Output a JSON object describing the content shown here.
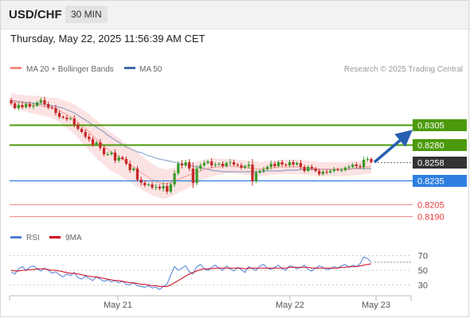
{
  "header": {
    "symbol": "USD/CHF",
    "timeframe": "30 MIN",
    "timestamp": "Thursday, May 22, 2025 11:56:39 AM CET"
  },
  "legend": {
    "ma20_label": "MA 20 + Bollinger Bands",
    "ma50_label": "MA 50",
    "ma20_color": "#f28b82",
    "ma50_color": "#3f6aa8",
    "credit": "Research © 2025 Trading Central"
  },
  "rsi_legend": {
    "rsi_label": "RSI",
    "ma_label": "9MA",
    "rsi_color": "#4f7fd6",
    "ma_color": "#d0021b"
  },
  "chart_data": {
    "type": "candlestick",
    "x_ticks": [
      "May 21",
      "May 22",
      "May 23"
    ],
    "levels": [
      {
        "value": 0.8305,
        "label": "0.8305",
        "kind": "resistance",
        "color": "#4c9a0a"
      },
      {
        "value": 0.828,
        "label": "0.8280",
        "kind": "resistance",
        "color": "#4c9a0a"
      },
      {
        "value": 0.8258,
        "label": "0.8258",
        "kind": "last",
        "color": "#333333"
      },
      {
        "value": 0.8235,
        "label": "0.8235",
        "kind": "pivot",
        "color": "#2f7fe0"
      },
      {
        "value": 0.8205,
        "label": "0.8205",
        "kind": "support",
        "color": "#e53935"
      },
      {
        "value": 0.819,
        "label": "0.8190",
        "kind": "support",
        "color": "#e53935"
      }
    ],
    "close": [
      0.8332,
      0.8326,
      0.833,
      0.8327,
      0.8331,
      0.8328,
      0.8329,
      0.8333,
      0.8336,
      0.8331,
      0.8327,
      0.8326,
      0.832,
      0.8315,
      0.8314,
      0.8312,
      0.8313,
      0.8305,
      0.83,
      0.8296,
      0.829,
      0.8287,
      0.828,
      0.8283,
      0.8276,
      0.8268,
      0.8268,
      0.827,
      0.826,
      0.8264,
      0.8262,
      0.8256,
      0.8248,
      0.825,
      0.8236,
      0.8232,
      0.8229,
      0.823,
      0.8226,
      0.8227,
      0.8225,
      0.8228,
      0.8221,
      0.823,
      0.8244,
      0.8256,
      0.8254,
      0.8258,
      0.825,
      0.8232,
      0.825,
      0.8254,
      0.8257,
      0.8259,
      0.8254,
      0.8255,
      0.8256,
      0.8253,
      0.8257,
      0.8258,
      0.8255,
      0.8254,
      0.8251,
      0.8253,
      0.8255,
      0.8234,
      0.8245,
      0.8247,
      0.8249,
      0.8252,
      0.8256,
      0.8253,
      0.8258,
      0.8255,
      0.8254,
      0.8258,
      0.8255,
      0.8257,
      0.8252,
      0.8247,
      0.8252,
      0.825,
      0.8247,
      0.8243,
      0.8246,
      0.8245,
      0.8247,
      0.8249,
      0.8248,
      0.8248,
      0.8251,
      0.8252,
      0.8255,
      0.8253,
      0.8252,
      0.8261,
      0.8262,
      0.8258
    ],
    "ma20": [
      0.8336,
      0.8335,
      0.8334,
      0.8333,
      0.8332,
      0.8331,
      0.833,
      0.833,
      0.8329,
      0.8328,
      0.8327,
      0.8326,
      0.8325,
      0.8323,
      0.832,
      0.8318,
      0.8315,
      0.8312,
      0.8308,
      0.8304,
      0.83,
      0.8296,
      0.8291,
      0.8287,
      0.8283,
      0.8279,
      0.8274,
      0.8271,
      0.8268,
      0.8265,
      0.8262,
      0.8258,
      0.8255,
      0.8252,
      0.8249,
      0.8245,
      0.8242,
      0.8239,
      0.8236,
      0.8234,
      0.8232,
      0.8231,
      0.8231,
      0.8232,
      0.8234,
      0.8236,
      0.8238,
      0.824,
      0.8242,
      0.8243,
      0.8245,
      0.8247,
      0.8249,
      0.825,
      0.8251,
      0.8252,
      0.8252,
      0.8253,
      0.8253,
      0.8253,
      0.8253,
      0.8252,
      0.8252,
      0.8251,
      0.8251,
      0.825,
      0.825,
      0.8249,
      0.825,
      0.825,
      0.8251,
      0.8251,
      0.8252,
      0.8252,
      0.8252,
      0.8252,
      0.8252,
      0.8252,
      0.8252,
      0.8251,
      0.8251,
      0.825,
      0.825,
      0.8249,
      0.8249,
      0.8249,
      0.8249,
      0.8249,
      0.8249,
      0.8249,
      0.8249,
      0.825,
      0.825,
      0.8251,
      0.8251,
      0.8252,
      0.8252,
      0.8253
    ],
    "ma50": [
      0.8335,
      0.8335,
      0.8334,
      0.8334,
      0.8333,
      0.8333,
      0.8332,
      0.8332,
      0.8331,
      0.8331,
      0.833,
      0.8329,
      0.8328,
      0.8327,
      0.8326,
      0.8324,
      0.8322,
      0.832,
      0.8317,
      0.8314,
      0.8311,
      0.8308,
      0.8305,
      0.8302,
      0.8299,
      0.8296,
      0.8292,
      0.8289,
      0.8286,
      0.8283,
      0.828,
      0.8277,
      0.8275,
      0.8273,
      0.8271,
      0.827,
      0.8268,
      0.8266,
      0.8265,
      0.8263,
      0.8262,
      0.8261,
      0.826,
      0.8259,
      0.8258,
      0.8257,
      0.8256,
      0.8255,
      0.8254,
      0.8253,
      0.8252,
      0.8251,
      0.825,
      0.8249,
      0.8248,
      0.8247,
      0.8247,
      0.8246,
      0.8246,
      0.8246,
      0.8246,
      0.8246,
      0.8246,
      0.8246,
      0.8246,
      0.8246,
      0.8246,
      0.8246,
      0.8246,
      0.8247,
      0.8247,
      0.8247,
      0.8247,
      0.8247,
      0.8248,
      0.8248,
      0.8248,
      0.8248,
      0.8249,
      0.8249,
      0.8249,
      0.8249,
      0.8249,
      0.8249,
      0.8249,
      0.8249,
      0.8249,
      0.8249,
      0.8249,
      0.8249,
      0.8249,
      0.8249,
      0.825,
      0.825,
      0.825,
      0.825,
      0.825,
      0.825
    ],
    "band_width": [
      0.0009,
      0.0009,
      0.0009,
      0.001,
      0.001,
      0.0011,
      0.0011,
      0.0012,
      0.0012,
      0.0012,
      0.0012,
      0.0013,
      0.0014,
      0.0015,
      0.0016,
      0.0017,
      0.0018,
      0.0019,
      0.002,
      0.0021,
      0.0022,
      0.0023,
      0.0023,
      0.0024,
      0.0024,
      0.0024,
      0.0024,
      0.0024,
      0.0024,
      0.0023,
      0.0023,
      0.0023,
      0.0022,
      0.0022,
      0.0022,
      0.0021,
      0.0021,
      0.002,
      0.002,
      0.0019,
      0.0019,
      0.0019,
      0.0018,
      0.0018,
      0.0017,
      0.0017,
      0.0016,
      0.0016,
      0.0015,
      0.0014,
      0.0014,
      0.0013,
      0.0012,
      0.0012,
      0.0011,
      0.0011,
      0.001,
      0.001,
      0.0009,
      0.0009,
      0.0009,
      0.0009,
      0.0009,
      0.0009,
      0.0009,
      0.0009,
      0.0009,
      0.0009,
      0.0009,
      0.0009,
      0.0009,
      0.0009,
      0.0009,
      0.0009,
      0.0009,
      0.0009,
      0.0009,
      0.0009,
      0.0009,
      0.0009,
      0.0009,
      0.0009,
      0.0009,
      0.0009,
      0.0009,
      0.0009,
      0.0009,
      0.0009,
      0.0009,
      0.0009,
      0.0009,
      0.0009,
      0.0009,
      0.0009,
      0.0009,
      0.0009,
      0.0009,
      0.0009
    ],
    "rsi": {
      "ticks": [
        70,
        50,
        30
      ],
      "range": [
        20,
        80
      ],
      "rsi": [
        48,
        45,
        52,
        55,
        50,
        54,
        56,
        52,
        49,
        53,
        50,
        46,
        48,
        44,
        41,
        45,
        43,
        47,
        40,
        38,
        42,
        39,
        36,
        41,
        38,
        35,
        37,
        34,
        36,
        33,
        35,
        31,
        30,
        33,
        29,
        28,
        27,
        29,
        26,
        27,
        24,
        28,
        31,
        44,
        55,
        50,
        53,
        56,
        48,
        45,
        55,
        58,
        52,
        50,
        54,
        57,
        53,
        50,
        56,
        52,
        49,
        54,
        51,
        47,
        55,
        52,
        50,
        56,
        58,
        53,
        51,
        54,
        57,
        52,
        50,
        56,
        55,
        52,
        54,
        57,
        51,
        49,
        53,
        56,
        54,
        51,
        52,
        55,
        53,
        56,
        58,
        54,
        57,
        55,
        59,
        68,
        66,
        61
      ],
      "ma": [
        50,
        49,
        49,
        50,
        50,
        51,
        51,
        52,
        52,
        52,
        51,
        50,
        50,
        49,
        48,
        47,
        46,
        46,
        45,
        44,
        43,
        42,
        41,
        41,
        40,
        39,
        38,
        37,
        36,
        36,
        35,
        34,
        33,
        33,
        32,
        31,
        31,
        30,
        29,
        29,
        28,
        28,
        28,
        30,
        33,
        36,
        39,
        42,
        45,
        47,
        49,
        51,
        52,
        52,
        52,
        53,
        53,
        53,
        53,
        53,
        53,
        53,
        53,
        52,
        53,
        53,
        53,
        53,
        53,
        53,
        53,
        53,
        53,
        53,
        53,
        54,
        54,
        54,
        54,
        54,
        54,
        53,
        53,
        53,
        53,
        53,
        53,
        53,
        53,
        54,
        54,
        55,
        55,
        55,
        56,
        57,
        58,
        59
      ]
    }
  }
}
